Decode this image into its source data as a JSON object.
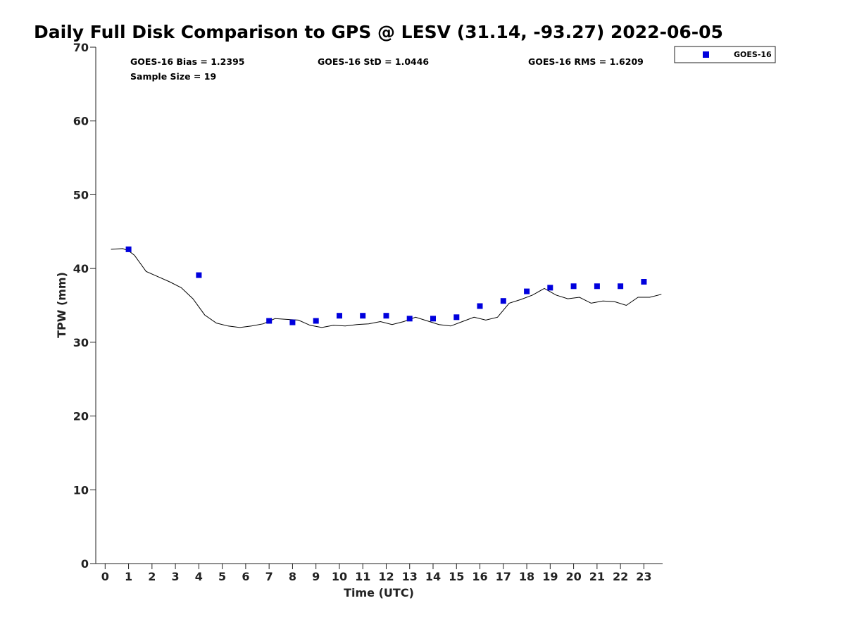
{
  "chart_data": {
    "type": "scatter",
    "title": "Daily Full Disk Comparison to GPS @ LESV (31.14, -93.27) 2022-06-05",
    "xlabel": "Time (UTC)",
    "ylabel": "TPW (mm)",
    "xlim": [
      -0.4,
      23.8
    ],
    "ylim": [
      0,
      70
    ],
    "x_ticks": [
      0,
      1,
      2,
      3,
      4,
      5,
      6,
      7,
      8,
      9,
      10,
      11,
      12,
      13,
      14,
      15,
      16,
      17,
      18,
      19,
      20,
      21,
      22,
      23
    ],
    "y_ticks": [
      0,
      10,
      20,
      30,
      40,
      50,
      60,
      70
    ],
    "grid": false,
    "legend_position": "top-right (outside)",
    "stats": {
      "bias": "GOES-16 Bias = 1.2395",
      "std": "GOES-16 StD = 1.0446",
      "rms": "GOES-16 RMS = 1.6209",
      "sample_size": "Sample Size = 19"
    },
    "series": [
      {
        "name": "GOES-16",
        "kind": "scatter",
        "marker": "square",
        "color": "#0000dd",
        "x": [
          1,
          4,
          7,
          8,
          9,
          10,
          11,
          12,
          13,
          14,
          15,
          16,
          17,
          18,
          19,
          20,
          21,
          22,
          23
        ],
        "y": [
          42.6,
          39.1,
          32.9,
          32.7,
          32.9,
          33.6,
          33.6,
          33.6,
          33.2,
          33.2,
          33.4,
          34.9,
          35.6,
          36.9,
          37.4,
          37.6,
          37.6,
          37.6,
          38.2
        ]
      },
      {
        "kind": "line",
        "color": "#000000",
        "x": [
          0.25,
          0.75,
          1.0,
          1.25,
          1.75,
          2.25,
          2.75,
          3.25,
          3.75,
          4.25,
          4.75,
          5.25,
          5.75,
          6.25,
          6.75,
          7.25,
          7.75,
          8.25,
          8.75,
          9.25,
          9.75,
          10.25,
          10.75,
          11.25,
          11.75,
          12.25,
          12.75,
          13.25,
          13.75,
          14.25,
          14.75,
          15.25,
          15.75,
          16.25,
          16.75,
          17.25,
          17.75,
          18.25,
          18.75,
          19.25,
          19.75,
          20.25,
          20.75,
          21.25,
          21.75,
          22.25,
          22.75,
          23.25,
          23.75
        ],
        "y": [
          42.6,
          42.7,
          42.4,
          41.8,
          39.6,
          38.9,
          38.2,
          37.4,
          35.9,
          33.7,
          32.6,
          32.2,
          32.0,
          32.2,
          32.5,
          33.2,
          33.1,
          33.0,
          32.3,
          32.0,
          32.3,
          32.2,
          32.4,
          32.5,
          32.8,
          32.4,
          32.8,
          33.4,
          32.9,
          32.4,
          32.2,
          32.8,
          33.4,
          33.0,
          33.4,
          35.3,
          35.8,
          36.4,
          37.3,
          36.4,
          35.9,
          36.1,
          35.3,
          35.6,
          35.5,
          35.0,
          36.1,
          36.1,
          36.5
        ]
      }
    ]
  }
}
